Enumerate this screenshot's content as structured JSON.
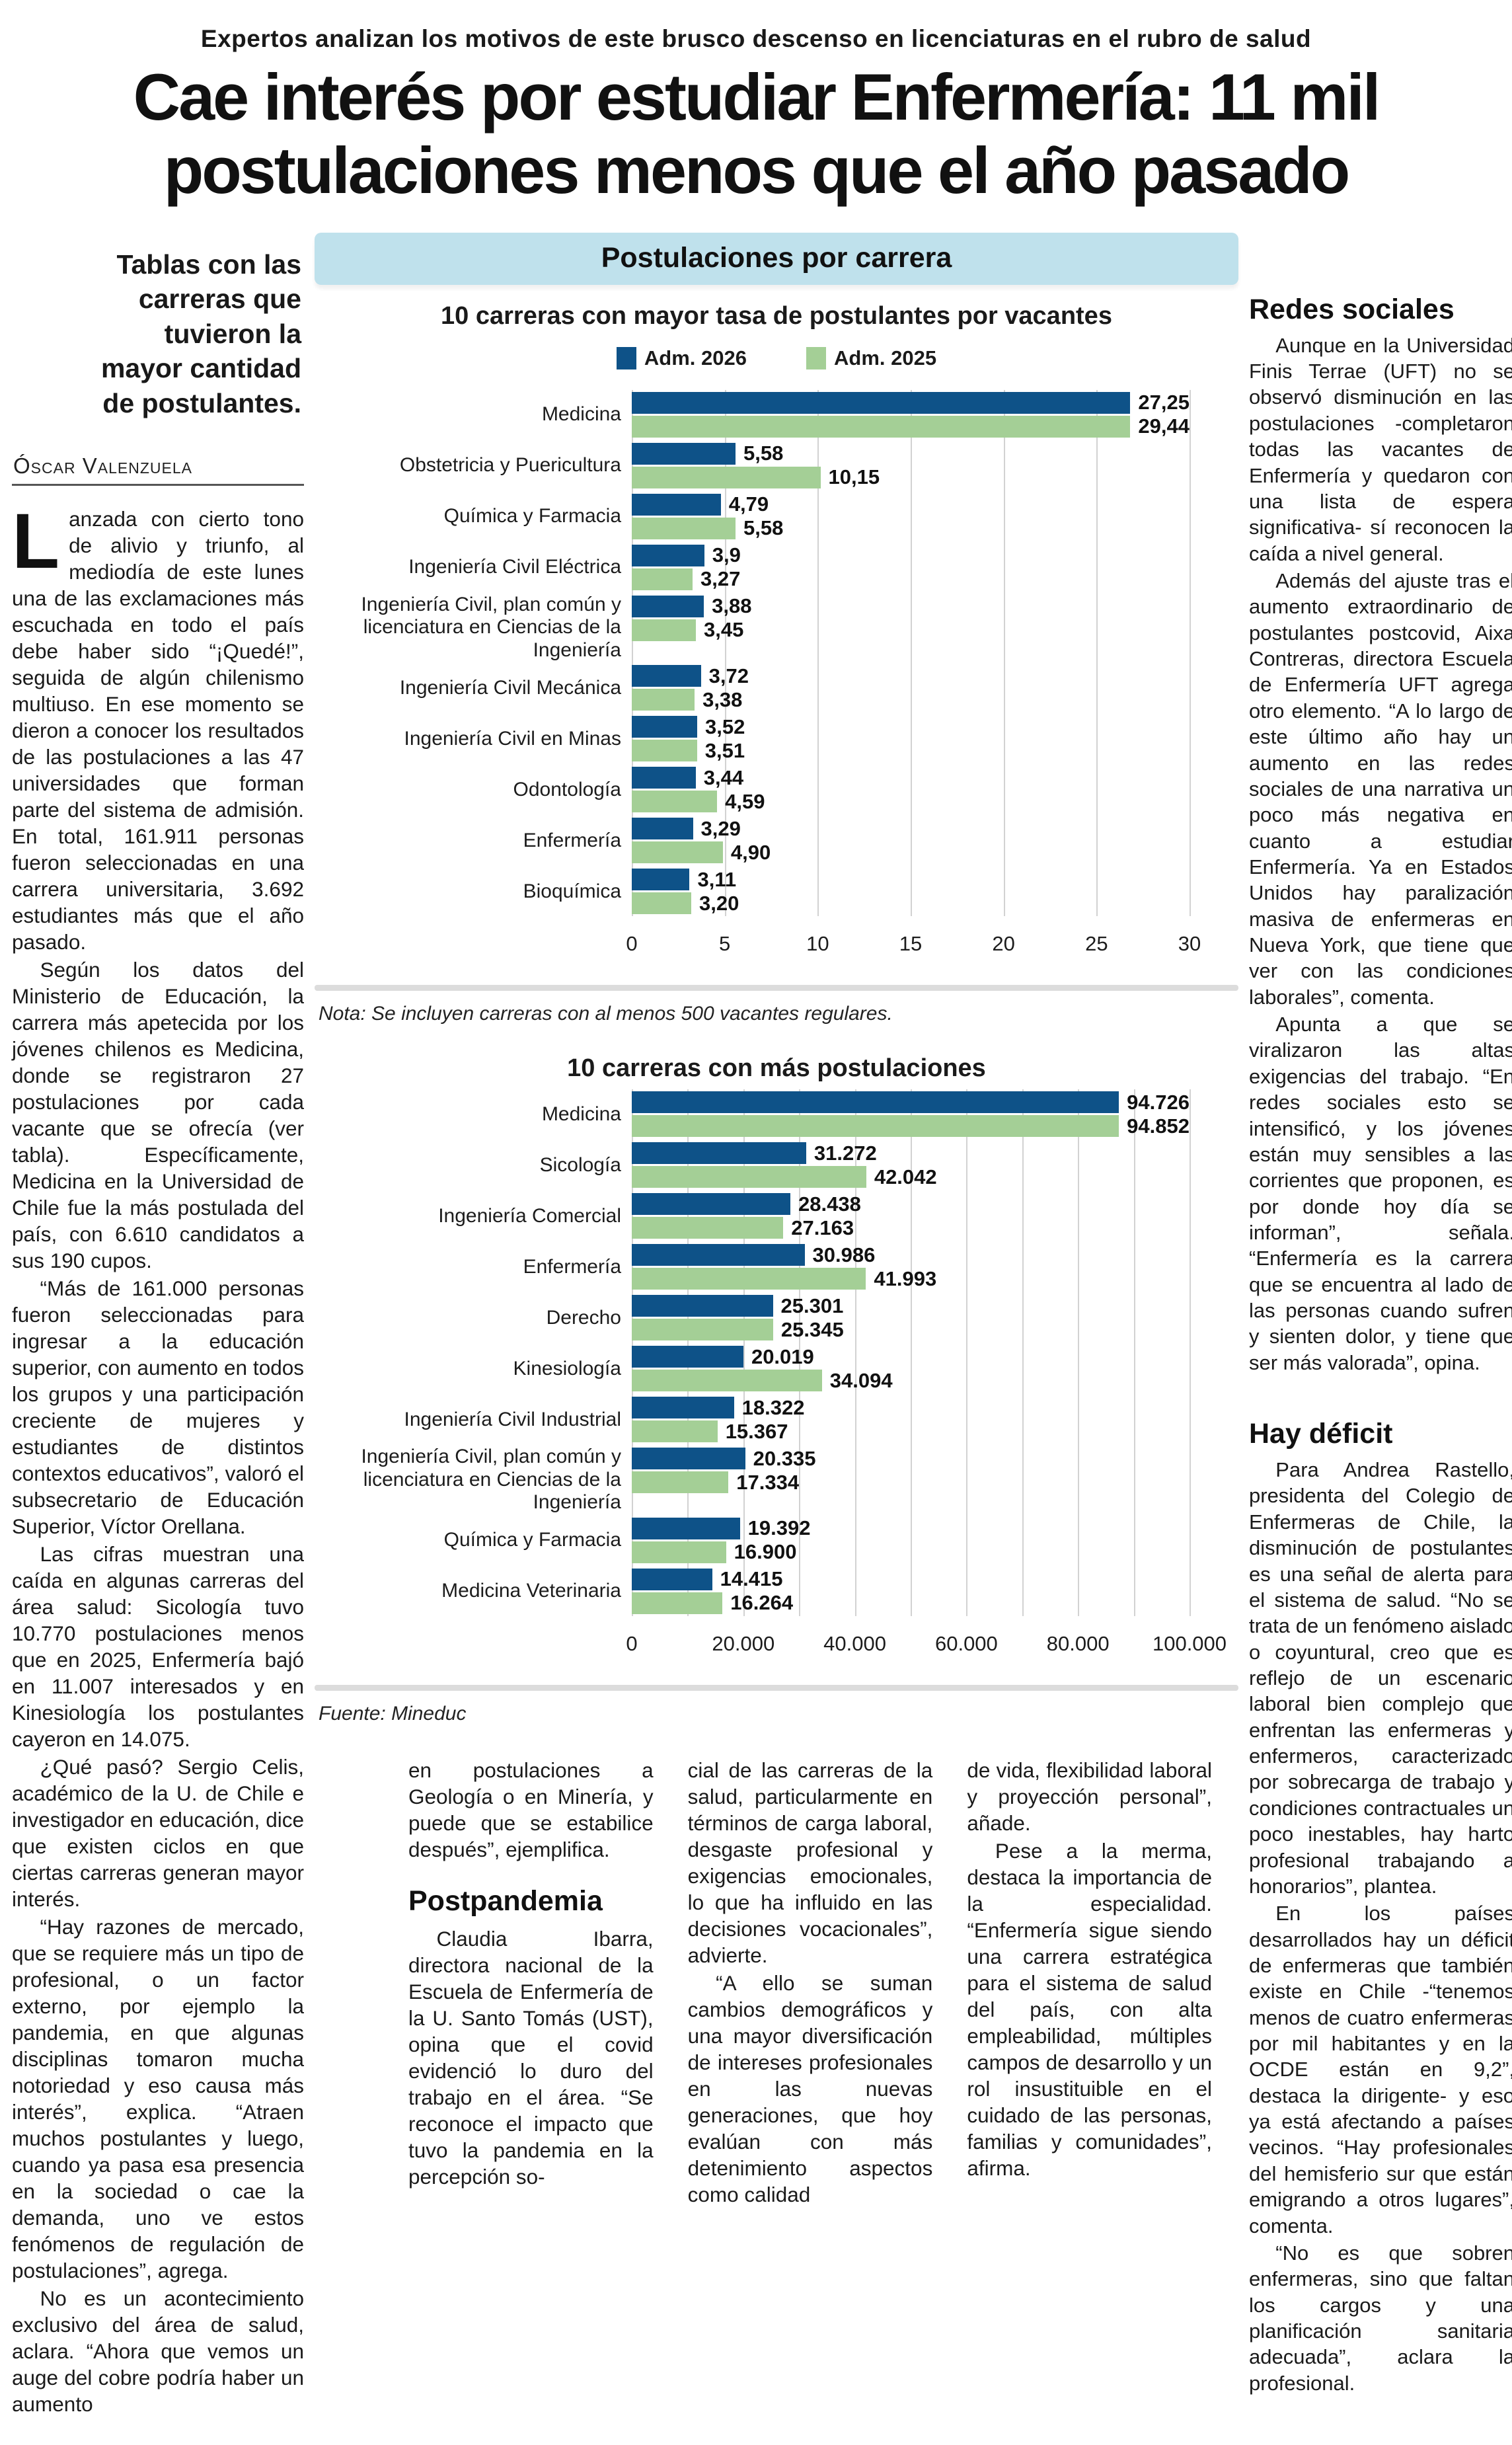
{
  "kicker": "Expertos analizan los motivos de este brusco descenso en licenciaturas en el rubro de salud",
  "headline": "Cae interés por estudiar Enfermería: 11 mil postulaciones menos que el año pasado",
  "deck": "Tablas con las carreras que tuvieron la mayor cantidad de postulantes.",
  "byline": "Óscar Valenzuela",
  "colors": {
    "bar_blue": "#0e5288",
    "bar_green": "#a4cf96",
    "band_blue": "#bfe1ec",
    "grid": "#d2d2d2"
  },
  "left_column": {
    "paragraphs": [
      "Lanzada con cierto tono de alivio y triunfo, al mediodía de este lunes una de las exclamaciones más escuchada en todo el país debe haber sido “¡Quedé!”, seguida de algún chilenismo multiuso. En ese momento se dieron a conocer los resultados de las postulaciones a las 47 universidades que forman parte del sistema de admisión. En total, 161.911 personas fueron seleccionadas en una carrera universitaria, 3.692 estudiantes más que el año pasado.",
      "Según los datos del Ministerio de Educación, la carrera más apetecida por los jóvenes chilenos es Medicina, donde se registraron 27 postulaciones por cada vacante que se ofrecía (ver tabla). Específicamente, Medicina en la Universidad de Chile fue la más postulada del país, con 6.610 candidatos a sus 190 cupos.",
      "“Más de 161.000 personas fueron seleccionadas para ingresar a la educación superior, con aumento en todos los grupos y una participación creciente de mujeres y estudiantes de distintos contextos educativos”, valoró el subsecretario de Educación Superior, Víctor Orellana.",
      "Las cifras muestran una caída en algunas carreras del área salud: Sicología tuvo 10.770 postulaciones menos que en 2025, Enfermería bajó en 11.007 interesados y en Kinesiología los postulantes cayeron en 14.075.",
      "¿Qué pasó? Sergio Celis, académico de la U. de Chile e investigador en educación, dice que existen ciclos en que ciertas carreras generan mayor interés.",
      "“Hay razones de mercado, que se requiere más un tipo de profesional, o un factor externo, por ejemplo la pandemia, en que algunas disciplinas tomaron mucha notoriedad y eso causa más interés”, explica. “Atraen muchos postulantes y luego, cuando ya pasa esa presencia en la sociedad o cae la demanda, uno ve estos fenómenos de regulación de postulaciones”, agrega.",
      "No es un acontecimiento exclusivo del área de salud, aclara. “Ahora que vemos un auge del cobre podría haber un aumento"
    ]
  },
  "infographic": {
    "panel_title": "Postulaciones por carrera",
    "legend": [
      {
        "label": "Adm. 2026",
        "color": "#0e5288"
      },
      {
        "label": "Adm. 2025",
        "color": "#a4cf96"
      }
    ],
    "note": "Nota: Se incluyen carreras con al menos 500 vacantes regulares.",
    "source": "Fuente: Mineduc"
  },
  "chart_data": [
    {
      "type": "bar",
      "orientation": "horizontal",
      "title": "10 carreras con mayor tasa de postulantes por vacantes",
      "legend_position": "top-center",
      "grid": true,
      "xlim": [
        0,
        30
      ],
      "categories": [
        "Medicina",
        "Obstetricia y Puericultura",
        "Química y Farmacia",
        "Ingeniería Civil Eléctrica",
        "Ingeniería Civil, plan común y licenciatura en Ciencias de la Ingeniería",
        "Ingeniería Civil Mecánica",
        "Ingeniería Civil en Minas",
        "Odontología",
        "Enfermería",
        "Bioquímica"
      ],
      "series": [
        {
          "name": "Adm. 2026",
          "values": [
            27.25,
            5.58,
            4.79,
            3.9,
            3.88,
            3.72,
            3.52,
            3.44,
            3.29,
            3.11
          ],
          "labels": [
            "27,25",
            "5,58",
            "4,79",
            "3,9",
            "3,88",
            "3,72",
            "3,52",
            "3,44",
            "3,29",
            "3,11"
          ]
        },
        {
          "name": "Adm. 2025",
          "values": [
            29.44,
            10.15,
            5.58,
            3.27,
            3.45,
            3.38,
            3.51,
            4.59,
            4.9,
            3.2
          ],
          "labels": [
            "29,44",
            "10,15",
            "5,58",
            "3,27",
            "3,45",
            "3,38",
            "3,51",
            "4,59",
            "4,90",
            "3,20"
          ]
        }
      ],
      "grid_values": [
        0,
        5,
        10,
        15,
        20,
        25,
        30
      ],
      "ticks": [
        {
          "value": 0,
          "label": "0"
        },
        {
          "value": 5,
          "label": "5"
        },
        {
          "value": 10,
          "label": "10"
        },
        {
          "value": 15,
          "label": "15"
        },
        {
          "value": 20,
          "label": "20"
        },
        {
          "value": 25,
          "label": "25"
        },
        {
          "value": 30,
          "label": "30"
        }
      ]
    },
    {
      "type": "bar",
      "orientation": "horizontal",
      "title": "10 carreras con más postulaciones",
      "grid": true,
      "xlim": [
        0,
        100000
      ],
      "categories": [
        "Medicina",
        "Sicología",
        "Ingeniería Comercial",
        "Enfermería",
        "Derecho",
        "Kinesiología",
        "Ingeniería Civil Industrial",
        "Ingeniería Civil, plan común y licenciatura en Ciencias de la Ingeniería",
        "Química y Farmacia",
        "Medicina Veterinaria"
      ],
      "series": [
        {
          "name": "Adm. 2026",
          "values": [
            94726,
            31272,
            28438,
            30986,
            25301,
            20019,
            18322,
            20335,
            19392,
            14415
          ],
          "labels": [
            "94.726",
            "31.272",
            "28.438",
            "30.986",
            "25.301",
            "20.019",
            "18.322",
            "20.335",
            "19.392",
            "14.415"
          ]
        },
        {
          "name": "Adm. 2025",
          "values": [
            94852,
            42042,
            27163,
            41993,
            25345,
            34094,
            15367,
            17334,
            16900,
            16264
          ],
          "labels": [
            "94.852",
            "42.042",
            "27.163",
            "41.993",
            "25.345",
            "34.094",
            "15.367",
            "17.334",
            "16.900",
            "16.264"
          ]
        }
      ],
      "grid_values": [
        0,
        10000,
        20000,
        30000,
        40000,
        50000,
        60000,
        70000,
        80000,
        90000,
        100000
      ],
      "ticks": [
        {
          "value": 0,
          "label": "0"
        },
        {
          "value": 20000,
          "label": "20.000"
        },
        {
          "value": 40000,
          "label": "40.000"
        },
        {
          "value": 60000,
          "label": "60.000"
        },
        {
          "value": 80000,
          "label": "80.000"
        },
        {
          "value": 100000,
          "label": "100.000"
        }
      ]
    }
  ],
  "bottom_columns": [
    {
      "lead_paragraphs": [
        "en postulaciones a Geología o en Minería, y puede que se estabilice después”, ejemplifica."
      ],
      "heading": "Postpandemia",
      "paragraphs": [
        "Claudia Ibarra, directora nacional de la Escuela de Enfermería de la U. Santo Tomás (UST), opina que el covid evidenció lo duro del trabajo en el área. “Se reconoce el impacto que tuvo la pandemia en la percepción so-"
      ]
    },
    {
      "paragraphs": [
        "cial de las carreras de la salud, particularmente en términos de carga laboral, desgaste profesional y exigencias emocionales, lo que ha influido en las decisiones vocacionales”, advierte.",
        "“A ello se suman cambios demográficos y una mayor diversificación de intereses profesionales en las nuevas generaciones, que hoy evalúan con más detenimiento aspectos como calidad"
      ]
    },
    {
      "paragraphs": [
        "de vida, flexibilidad laboral y proyección personal”, añade.",
        "Pese a la merma, destaca la importancia de la especialidad. “Enfermería sigue siendo una carrera estratégica para el sistema de salud del país, con alta empleabilidad, múltiples campos de desarrollo y un rol insustituible en el cuidado de las personas, familias y comunidades”, afirma."
      ]
    }
  ],
  "right_column": {
    "sections": [
      {
        "heading": "Redes sociales",
        "paragraphs": [
          "Aunque en la Universidad Finis Terrae (UFT) no se observó disminución en las postulaciones -completaron todas las vacantes de Enfermería y quedaron con una lista de espera significativa- sí reconocen la caída a nivel general.",
          "Además del ajuste tras el aumento extraordinario de postulantes postcovid, Aixa Contreras, directora Escuela de Enfermería UFT agrega otro elemento. “A lo largo de este último año hay un aumento en las redes sociales de una narrativa un poco más negativa en cuanto a estudiar Enfermería. Ya en Estados Unidos hay paralización masiva de enfermeras en Nueva York, que tiene que ver con las condiciones laborales”, comenta.",
          "Apunta a que se viralizaron las altas exigencias del trabajo. “En redes sociales esto se intensificó, y los jóvenes están muy sensibles a las corrientes que proponen, es por donde hoy día se informan”, señala. “Enfermería es la carrera que se encuentra al lado de las personas cuando sufren y sienten dolor, y tiene que ser más valorada”, opina."
        ]
      },
      {
        "heading": "Hay déficit",
        "paragraphs": [
          "Para Andrea Rastello, presidenta del Colegio de Enfermeras de Chile, la disminución de postulantes es una señal de alerta para el sistema de salud. “No se trata de un fenómeno aislado o coyuntural, creo que es reflejo de un escenario laboral bien complejo que enfrentan las enfermeras y enfermeros, caracterizado por sobrecarga de trabajo y condiciones contractuales un poco inestables, hay harto profesional trabajando a honorarios”, plantea.",
          "En los países desarrollados hay un déficit de enfermeras que también existe en Chile -“tenemos menos de cuatro enfermeras por mil habitantes y en la OCDE están en 9,2”, destaca la dirigente- y eso ya está afectando a países vecinos. “Hay profesionales del hemisferio sur que están emigrando a otros lugares”, comenta.",
          "“No es que sobren enfermeras, sino que faltan los cargos y una planificación sanitaria adecuada”, aclara la profesional."
        ]
      }
    ]
  }
}
